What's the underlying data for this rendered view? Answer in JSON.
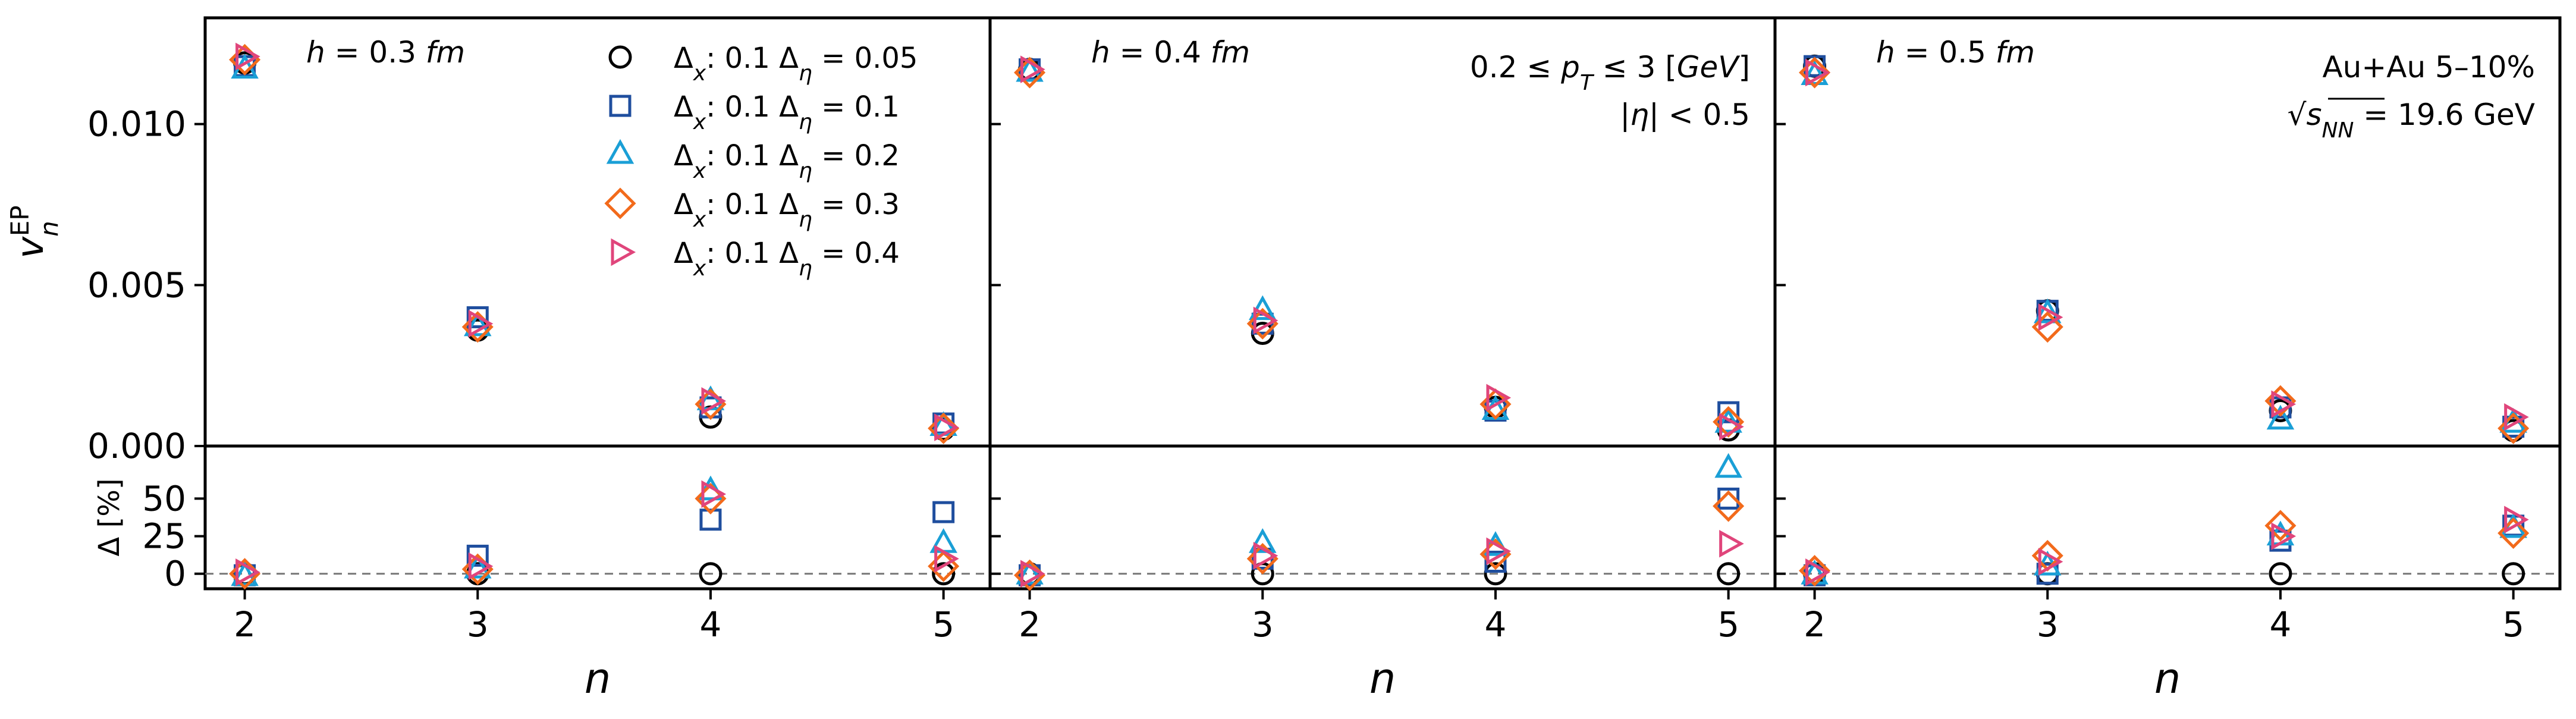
{
  "chart_data": {
    "type": "scatter",
    "xlabel": "n",
    "ylabel_top": "v_n^EP",
    "ylabel_bottom": "Δ [%]",
    "x_ticks": [
      2,
      3,
      4,
      5
    ],
    "xlim": [
      1.83,
      5.2
    ],
    "ylim_top": [
      0.0,
      0.0133
    ],
    "ylim_bottom": [
      -10,
      85
    ],
    "y_ticks_top": [
      0.0,
      0.005,
      0.01
    ],
    "y_tick_labels_top": [
      "0.000",
      "0.005",
      "0.010"
    ],
    "y_ticks_bottom": [
      0,
      25,
      50
    ],
    "y_tick_labels_bottom": [
      "0",
      "25",
      "50"
    ],
    "reference_line_bottom": 0,
    "legend": {
      "placement": "top-right of first panel",
      "entries": [
        {
          "label": "Δx: 0.1 Δη = 0.05",
          "marker": "circle",
          "color": "#000000"
        },
        {
          "label": "Δx: 0.1 Δη = 0.1",
          "marker": "square",
          "color": "#1f4e9e"
        },
        {
          "label": "Δx: 0.1 Δη = 0.2",
          "marker": "triangle-up",
          "color": "#1a9fd6"
        },
        {
          "label": "Δx: 0.1 Δη = 0.3",
          "marker": "diamond",
          "color": "#f26a1b"
        },
        {
          "label": "Δx: 0.1 Δη = 0.4",
          "marker": "triangle-right",
          "color": "#e0457b"
        }
      ]
    },
    "panels": [
      {
        "label": "h = 0.3 fm",
        "annotations": [],
        "top": [
          {
            "values": [
              0.0119,
              0.0036,
              0.0009,
              0.00052
            ]
          },
          {
            "values": [
              0.0118,
              0.004,
              0.0012,
              0.0007
            ]
          },
          {
            "values": [
              0.0117,
              0.0037,
              0.0014,
              0.0006
            ]
          },
          {
            "values": [
              0.012,
              0.0037,
              0.0013,
              0.00055
            ]
          },
          {
            "values": [
              0.0121,
              0.0038,
              0.0014,
              0.00058
            ]
          }
        ],
        "bottom": [
          {
            "values": [
              0,
              0,
              0,
              0
            ]
          },
          {
            "values": [
              -1,
              12,
              36,
              41
            ]
          },
          {
            "values": [
              -2,
              3,
              55,
              20
            ]
          },
          {
            "values": [
              0,
              3,
              50,
              5
            ]
          },
          {
            "values": [
              1,
              5,
              53,
              10
            ]
          }
        ]
      },
      {
        "label": "h = 0.4 fm",
        "annotations": [
          "0.2 ≤ p_T ≤ 3 [GeV]",
          "|η| < 0.5"
        ],
        "top": [
          {
            "values": [
              0.0117,
              0.0035,
              0.0012,
              0.0005
            ]
          },
          {
            "values": [
              0.0117,
              0.0038,
              0.0011,
              0.00105
            ]
          },
          {
            "values": [
              0.0116,
              0.0042,
              0.0011,
              0.0007
            ]
          },
          {
            "values": [
              0.0116,
              0.0038,
              0.0013,
              0.00075
            ]
          },
          {
            "values": [
              0.0117,
              0.0039,
              0.0015,
              0.0006
            ]
          }
        ],
        "bottom": [
          {
            "values": [
              0,
              0,
              0,
              0
            ]
          },
          {
            "values": [
              -1,
              10,
              8,
              50
            ]
          },
          {
            "values": [
              -1,
              20,
              18,
              70
            ]
          },
          {
            "values": [
              -1,
              10,
              13,
              45
            ]
          },
          {
            "values": [
              0,
              12,
              15,
              20
            ]
          }
        ]
      },
      {
        "label": "h = 0.5 fm",
        "annotations": [
          "Au+Au 5–10%",
          "√s_NN = 19.6 GeV"
        ],
        "top": [
          {
            "values": [
              0.0118,
              0.0042,
              0.0011,
              0.00048
            ]
          },
          {
            "values": [
              0.0118,
              0.0042,
              0.0012,
              0.0006
            ]
          },
          {
            "values": [
              0.0115,
              0.0041,
              0.0008,
              0.0007
            ]
          },
          {
            "values": [
              0.0116,
              0.0037,
              0.0014,
              0.00055
            ]
          },
          {
            "values": [
              0.0116,
              0.004,
              0.0013,
              0.0009
            ]
          }
        ],
        "bottom": [
          {
            "values": [
              0,
              0,
              0,
              0
            ]
          },
          {
            "values": [
              -1,
              0,
              22,
              32
            ]
          },
          {
            "values": [
              -1,
              5,
              25,
              30
            ]
          },
          {
            "values": [
              2,
              12,
              32,
              27
            ]
          },
          {
            "values": [
              1,
              8,
              25,
              36
            ]
          }
        ]
      }
    ]
  }
}
